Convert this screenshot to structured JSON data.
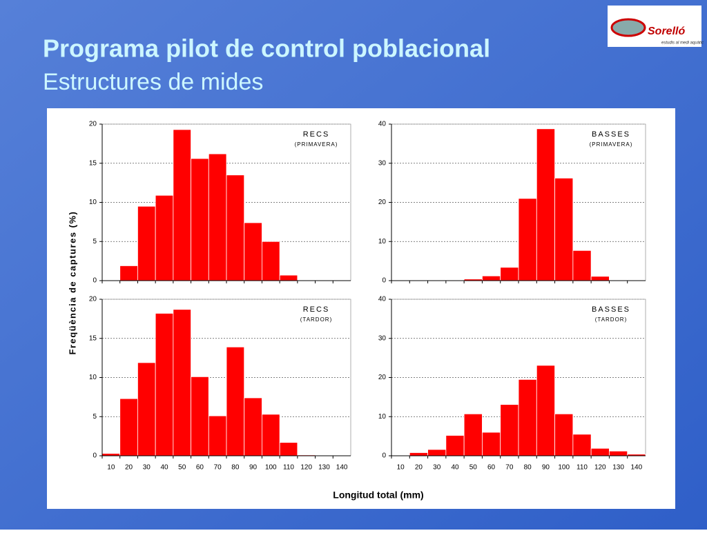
{
  "header": {
    "title": "Programa pilot de control poblacional",
    "subtitle": "Estructures de mides"
  },
  "logo": {
    "name": "Sorelló",
    "tagline": "estudis al medi aquàtic"
  },
  "ylabel": "Freqüència de captures (%)",
  "xlabel": "Longitud total (mm)",
  "chart_data": [
    {
      "type": "bar",
      "title": "RECS",
      "subtitle": "(PRIMAVERA)",
      "color": "#ff0000",
      "values": [
        0,
        1.9,
        9.5,
        10.9,
        19.3,
        15.6,
        16.2,
        13.5,
        7.4,
        5.0,
        0.7,
        0,
        0,
        0
      ],
      "ylim": [
        0,
        20
      ],
      "yticks": [
        0,
        5,
        10,
        15,
        20
      ],
      "grid": true
    },
    {
      "type": "bar",
      "title": "BASSES",
      "subtitle": "(PRIMAVERA)",
      "color": "#ff0000",
      "values": [
        0,
        0,
        0,
        0.1,
        0.4,
        1.2,
        3.4,
        21,
        38.8,
        26.2,
        7.7,
        1.1,
        0.1,
        0
      ],
      "ylim": [
        0,
        40
      ],
      "yticks": [
        0,
        10,
        20,
        30,
        40
      ],
      "grid": true
    },
    {
      "type": "bar",
      "title": "RECS",
      "subtitle": "(TARDOR)",
      "color": "#ff0000",
      "categories": [
        "10",
        "20",
        "30",
        "40",
        "50",
        "60",
        "70",
        "80",
        "90",
        "100",
        "110",
        "120",
        "130",
        "140"
      ],
      "values": [
        0.3,
        7.3,
        11.9,
        18.2,
        18.7,
        10.1,
        5.1,
        13.9,
        7.4,
        5.3,
        1.7,
        0.1,
        0,
        0
      ],
      "ylim": [
        0,
        20
      ],
      "yticks": [
        0,
        5,
        10,
        15,
        20
      ],
      "grid": true
    },
    {
      "type": "bar",
      "title": "BASSES",
      "subtitle": "(TARDOR)",
      "color": "#ff0000",
      "categories": [
        "10",
        "20",
        "30",
        "40",
        "50",
        "60",
        "70",
        "80",
        "90",
        "100",
        "110",
        "120",
        "130",
        "140"
      ],
      "values": [
        0,
        0.8,
        1.6,
        5.2,
        10.7,
        6.0,
        13.1,
        19.5,
        23.1,
        10.7,
        5.5,
        1.9,
        1.2,
        0.4
      ],
      "ylim": [
        0,
        40
      ],
      "yticks": [
        0,
        10,
        20,
        30,
        40
      ],
      "grid": true
    }
  ]
}
